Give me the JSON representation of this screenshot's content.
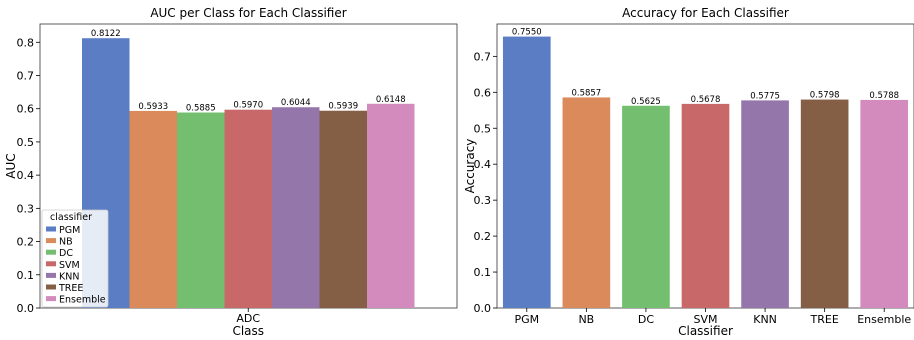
{
  "chart_data": [
    {
      "type": "bar",
      "title": "AUC per Class for Each Classifier",
      "xlabel": "Class",
      "ylabel": "AUC",
      "categories": [
        "ADC"
      ],
      "ylim": [
        0,
        0.855
      ],
      "yticks": [
        0.0,
        0.1,
        0.2,
        0.3,
        0.4,
        0.5,
        0.6,
        0.7,
        0.8
      ],
      "grid": false,
      "legend": {
        "title": "classifier",
        "placement": "lower-left"
      },
      "series": [
        {
          "name": "PGM",
          "values": [
            0.8122
          ],
          "label": "0.8122",
          "color": "#5a7dc3"
        },
        {
          "name": "NB",
          "values": [
            0.5933
          ],
          "label": "0.5933",
          "color": "#db8a5c"
        },
        {
          "name": "DC",
          "values": [
            0.5885
          ],
          "label": "0.5885",
          "color": "#74bf6f"
        },
        {
          "name": "SVM",
          "values": [
            0.597
          ],
          "label": "0.5970",
          "color": "#c96868"
        },
        {
          "name": "KNN",
          "values": [
            0.6044
          ],
          "label": "0.6044",
          "color": "#9476ab"
        },
        {
          "name": "TREE",
          "values": [
            0.5939
          ],
          "label": "0.5939",
          "color": "#845f45"
        },
        {
          "name": "Ensemble",
          "values": [
            0.6148
          ],
          "label": "0.6148",
          "color": "#d38abd"
        }
      ]
    },
    {
      "type": "bar",
      "title": "Accuracy for Each Classifier",
      "xlabel": "Classifier",
      "ylabel": "Accuracy",
      "categories": [
        "PGM",
        "NB",
        "DC",
        "SVM",
        "KNN",
        "TREE",
        "Ensemble"
      ],
      "values": [
        0.755,
        0.5857,
        0.5625,
        0.5678,
        0.5775,
        0.5798,
        0.5788
      ],
      "labels": [
        "0.7550",
        "0.5857",
        "0.5625",
        "0.5678",
        "0.5775",
        "0.5798",
        "0.5788"
      ],
      "colors": [
        "#5a7dc3",
        "#db8a5c",
        "#74bf6f",
        "#c96868",
        "#9476ab",
        "#845f45",
        "#d38abd"
      ],
      "ylim": [
        0,
        0.79
      ],
      "yticks": [
        0.0,
        0.1,
        0.2,
        0.3,
        0.4,
        0.5,
        0.6,
        0.7
      ],
      "grid": false
    }
  ]
}
